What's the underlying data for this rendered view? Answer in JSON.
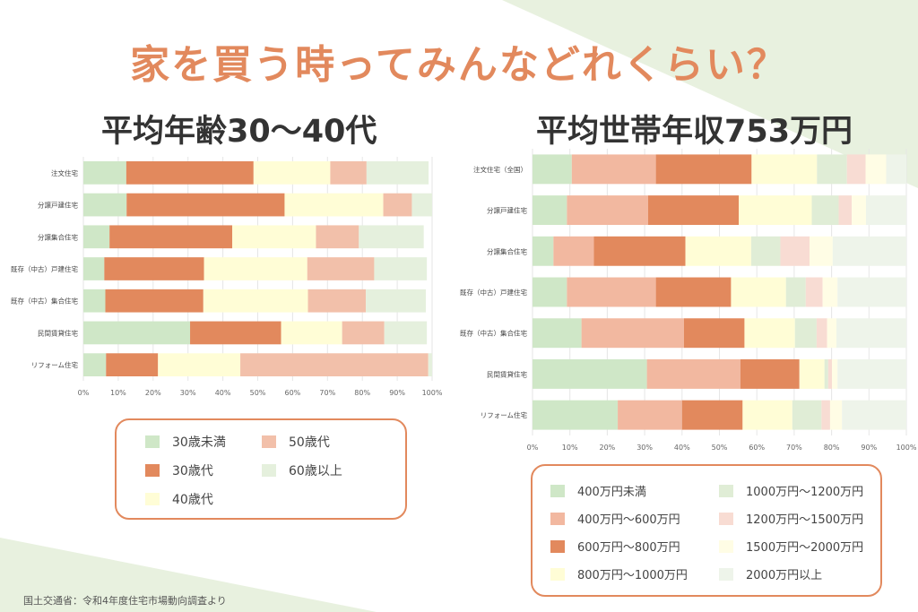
{
  "title": "家を買う時ってみんなどれくらい？",
  "left": {
    "subtitle": "平均年齢30〜40代",
    "chart_data": {
      "type": "bar",
      "orientation": "horizontal",
      "stacked": true,
      "categories": [
        "注文住宅",
        "分譲戸建住宅",
        "分譲集合住宅",
        "既存（中古）戸建住宅",
        "既存（中古）集合住宅",
        "民間賃貸住宅",
        "リフォーム住宅"
      ],
      "series": [
        {
          "name": "30歳未満",
          "color": "#cfe7c7",
          "values": [
            12.3,
            12.4,
            7.5,
            6.0,
            6.3,
            30.6,
            6.5
          ]
        },
        {
          "name": "30歳代",
          "color": "#e2895d",
          "values": [
            36.5,
            45.3,
            35.2,
            28.6,
            28.1,
            26.1,
            14.9
          ]
        },
        {
          "name": "40歳代",
          "color": "#fffdd6",
          "values": [
            22.0,
            28.3,
            24.0,
            29.6,
            30.0,
            17.5,
            23.6
          ]
        },
        {
          "name": "50歳代",
          "color": "#f2c0aa",
          "values": [
            10.4,
            8.2,
            12.3,
            19.2,
            16.6,
            12.1,
            53.9
          ]
        },
        {
          "name": "60歳以上",
          "color": "#e5f0dd",
          "values": [
            17.8,
            5.8,
            18.6,
            15.1,
            17.2,
            12.2,
            1.1
          ]
        }
      ],
      "xlim": [
        0,
        100
      ],
      "xticks": [
        "0%",
        "10%",
        "20%",
        "30%",
        "40%",
        "50%",
        "60%",
        "70%",
        "80%",
        "90%",
        "100%"
      ],
      "legend_position": "bottom"
    }
  },
  "right": {
    "subtitle": "平均世帯年収753万円",
    "chart_data": {
      "type": "bar",
      "orientation": "horizontal",
      "stacked": true,
      "categories": [
        "注文住宅（全国）",
        "分譲戸建住宅",
        "分譲集合住宅",
        "既存（中古）戸建住宅",
        "既存（中古）集合住宅",
        "民間賃貸住宅",
        "リフォーム住宅"
      ],
      "series": [
        {
          "name": "400万円未満",
          "color": "#cfe7c7",
          "values": [
            10.5,
            9.2,
            5.6,
            9.2,
            13.1,
            30.6,
            22.8
          ]
        },
        {
          "name": "400万円〜600万円",
          "color": "#f2b8a0",
          "values": [
            22.5,
            21.7,
            10.8,
            23.8,
            27.4,
            25.0,
            17.2
          ]
        },
        {
          "name": "600万円〜800万円",
          "color": "#e2895d",
          "values": [
            25.6,
            24.3,
            24.5,
            20.1,
            16.2,
            15.8,
            16.2
          ]
        },
        {
          "name": "800万円〜1000万円",
          "color": "#fffdd6",
          "values": [
            17.5,
            19.5,
            17.6,
            14.7,
            13.5,
            6.7,
            13.3
          ]
        },
        {
          "name": "1000万円〜1200万円",
          "color": "#e0edd6",
          "values": [
            8.0,
            7.2,
            7.8,
            5.3,
            5.8,
            1.0,
            7.8
          ]
        },
        {
          "name": "1200万円〜1500万円",
          "color": "#f8dcd3",
          "values": [
            5.0,
            3.5,
            7.8,
            4.5,
            2.8,
            1.0,
            2.3
          ]
        },
        {
          "name": "1500万円〜2000万円",
          "color": "#fffde5",
          "values": [
            5.5,
            3.8,
            6.2,
            4.0,
            2.5,
            1.5,
            3.2
          ]
        },
        {
          "name": "2000万円以上",
          "color": "#eef4ea",
          "values": [
            5.4,
            10.8,
            19.7,
            18.4,
            18.7,
            18.4,
            17.2
          ]
        }
      ],
      "xlim": [
        0,
        100
      ],
      "xticks": [
        "0%",
        "10%",
        "20%",
        "30%",
        "40%",
        "50%",
        "60%",
        "70%",
        "80%",
        "90%",
        "100%"
      ],
      "legend_position": "bottom"
    }
  },
  "source": "国土交通省：令和4年度住宅市場動向調査より"
}
